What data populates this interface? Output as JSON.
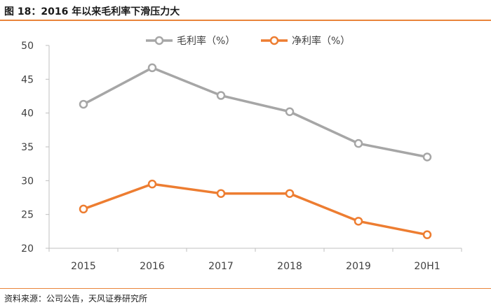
{
  "title": "图 18：2016 年以来毛利率下滑压力大",
  "source": "资料来源：公司公告，天风证券研究所",
  "colors": {
    "accent": "#e9843a",
    "gross": "#a6a6a6",
    "net": "#ed7d31",
    "axis": "#bfbfbf",
    "text": "#404040"
  },
  "chart_data": {
    "type": "line",
    "categories": [
      "2015",
      "2016",
      "2017",
      "2018",
      "2019",
      "20H1"
    ],
    "series": [
      {
        "name": "毛利率（%）",
        "values": [
          41.3,
          46.7,
          42.6,
          40.2,
          35.5,
          33.5
        ]
      },
      {
        "name": "净利率（%）",
        "values": [
          25.8,
          29.5,
          28.1,
          28.1,
          24.0,
          22.0
        ]
      }
    ],
    "yticks": [
      20,
      25,
      30,
      35,
      40,
      45,
      50
    ],
    "ylim": [
      20,
      50
    ],
    "xlabel": "",
    "ylabel": "",
    "grid": false,
    "legend": "top-center"
  }
}
